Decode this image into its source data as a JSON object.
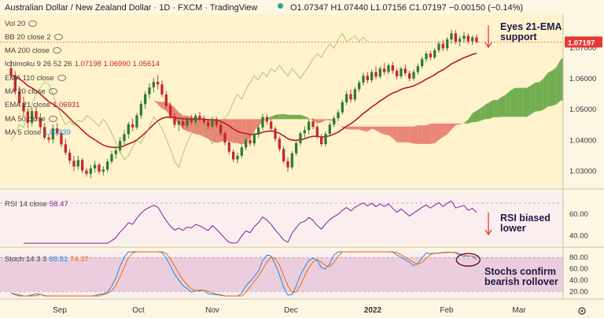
{
  "header": {
    "symbol": "Australian Dollar / New Zealand Dollar · 1D · FXCM · TradingView",
    "ohlc": "O1.07347  H1.07440  L1.07156  C1.07197  −0.00150 (−0.14%)"
  },
  "indicators": {
    "vol": {
      "label": "Vol 20"
    },
    "bb": {
      "label": "BB 20 close 2"
    },
    "ma200": {
      "label": "MA 200 close"
    },
    "ichimoku": {
      "label": "Ichimoku 9 26 52 26",
      "values": "1.07198  1.06990  1.05614"
    },
    "ema110": {
      "label": "EMA 110 close"
    },
    "ma20": {
      "label": "MA 20 close"
    },
    "ema21": {
      "label": "EMA 21 close",
      "value": "1.06931"
    },
    "ma50": {
      "label": "MA 50 close"
    },
    "ma5": {
      "label": "MA 5 close",
      "value": "1.07339"
    },
    "rsi": {
      "label": "RSI 14 close",
      "value": "58.47"
    },
    "stoch": {
      "label": "Stoch 14 3 3",
      "k": "68.51",
      "d": "74.37"
    }
  },
  "annotations": {
    "ema": "Eyes 21-EMA support",
    "rsi": "RSI biased lower",
    "stoch": "Stochs confirm bearish rollover"
  },
  "colors": {
    "bull": "#2e7d32",
    "bear": "#c62828",
    "ema21": "#b71c1c",
    "cloud_bull": "#6aaa4a",
    "cloud_bear": "#e57368",
    "rsi": "#7b1fa2",
    "stoch_k": "#1e88e5",
    "stoch_d": "#ef6c00",
    "price_badge": "#e53935"
  },
  "chart_data": {
    "type": "candlestick",
    "price_axis": {
      "ticks": [
        1.03,
        1.04,
        1.05,
        1.06,
        1.07
      ],
      "range": [
        1.0255,
        1.0805
      ]
    },
    "time_axis": {
      "ticks": [
        "Sep",
        "Oct",
        "Nov",
        "Dec",
        "2022",
        "Feb",
        "Mar"
      ]
    },
    "last_price": "1.07197",
    "rsi": {
      "ticks": [
        40,
        60
      ],
      "range": [
        33,
        78
      ],
      "bands": [
        30,
        70
      ],
      "last": 58.47
    },
    "stoch": {
      "ticks": [
        20,
        40,
        60,
        80
      ],
      "range": [
        12,
        90
      ],
      "bands": [
        20,
        80
      ],
      "k_last": 68.51,
      "d_last": 74.37
    },
    "candles": [
      [
        1.0634,
        1.066,
        1.0602,
        1.0612
      ],
      [
        1.0612,
        1.0625,
        1.0548,
        1.056
      ],
      [
        1.056,
        1.0576,
        1.0511,
        1.0521
      ],
      [
        1.0521,
        1.0542,
        1.0479,
        1.0494
      ],
      [
        1.0494,
        1.0505,
        1.044,
        1.0457
      ],
      [
        1.0457,
        1.0508,
        1.0446,
        1.0495
      ],
      [
        1.0495,
        1.0511,
        1.0462,
        1.0472
      ],
      [
        1.0472,
        1.0488,
        1.0432,
        1.0443
      ],
      [
        1.0443,
        1.0456,
        1.0402,
        1.0409
      ],
      [
        1.0409,
        1.0422,
        1.0392,
        1.0403
      ],
      [
        1.0403,
        1.0451,
        1.039,
        1.0439
      ],
      [
        1.0439,
        1.0456,
        1.0414,
        1.0423
      ],
      [
        1.0423,
        1.043,
        1.0378,
        1.0387
      ],
      [
        1.0387,
        1.0405,
        1.0352,
        1.036
      ],
      [
        1.036,
        1.0371,
        1.0324,
        1.0334
      ],
      [
        1.0334,
        1.035,
        1.03,
        1.0315
      ],
      [
        1.0315,
        1.035,
        1.0305,
        1.0336
      ],
      [
        1.0336,
        1.0342,
        1.0294,
        1.0302
      ],
      [
        1.0302,
        1.031,
        1.0282,
        1.0291
      ],
      [
        1.0291,
        1.032,
        1.0278,
        1.0309
      ],
      [
        1.0309,
        1.0333,
        1.0295,
        1.0321
      ],
      [
        1.0321,
        1.0327,
        1.029,
        1.0298
      ],
      [
        1.0298,
        1.0316,
        1.0286,
        1.0305
      ],
      [
        1.0305,
        1.034,
        1.0297,
        1.0331
      ],
      [
        1.0331,
        1.0366,
        1.0323,
        1.0355
      ],
      [
        1.0355,
        1.038,
        1.034,
        1.0368
      ],
      [
        1.0368,
        1.041,
        1.036,
        1.0398
      ],
      [
        1.0398,
        1.0433,
        1.0385,
        1.042
      ],
      [
        1.042,
        1.046,
        1.0406,
        1.0452
      ],
      [
        1.0452,
        1.0471,
        1.043,
        1.0442
      ],
      [
        1.0442,
        1.049,
        1.0435,
        1.0481
      ],
      [
        1.0481,
        1.0529,
        1.047,
        1.0518
      ],
      [
        1.0518,
        1.056,
        1.0503,
        1.055
      ],
      [
        1.055,
        1.0585,
        1.0537,
        1.0572
      ],
      [
        1.0572,
        1.0603,
        1.0556,
        1.059
      ],
      [
        1.059,
        1.0612,
        1.0566,
        1.0582
      ],
      [
        1.0582,
        1.0595,
        1.054,
        1.0549
      ],
      [
        1.0549,
        1.056,
        1.0505,
        1.0512
      ],
      [
        1.0512,
        1.0524,
        1.047,
        1.0478
      ],
      [
        1.0478,
        1.0489,
        1.0441,
        1.0451
      ],
      [
        1.0451,
        1.047,
        1.043,
        1.0462
      ],
      [
        1.0462,
        1.047,
        1.0438,
        1.0448
      ],
      [
        1.0448,
        1.0475,
        1.044,
        1.0466
      ],
      [
        1.0466,
        1.0483,
        1.0451,
        1.046
      ],
      [
        1.046,
        1.0488,
        1.0452,
        1.048
      ],
      [
        1.048,
        1.0493,
        1.0461,
        1.0472
      ],
      [
        1.0472,
        1.0481,
        1.0451,
        1.0459
      ],
      [
        1.0459,
        1.0466,
        1.0436,
        1.0446
      ],
      [
        1.0446,
        1.0477,
        1.044,
        1.0469
      ],
      [
        1.0469,
        1.0476,
        1.0442,
        1.045
      ],
      [
        1.045,
        1.0459,
        1.0414,
        1.0423
      ],
      [
        1.0423,
        1.043,
        1.0384,
        1.0393
      ],
      [
        1.0393,
        1.04,
        1.0355,
        1.0363
      ],
      [
        1.0363,
        1.0371,
        1.033,
        1.0338
      ],
      [
        1.0338,
        1.036,
        1.0326,
        1.035
      ],
      [
        1.035,
        1.0385,
        1.0342,
        1.0377
      ],
      [
        1.0377,
        1.041,
        1.0368,
        1.0401
      ],
      [
        1.0401,
        1.042,
        1.0382,
        1.039
      ],
      [
        1.039,
        1.0428,
        1.038,
        1.0419
      ],
      [
        1.0419,
        1.045,
        1.0408,
        1.0442
      ],
      [
        1.0442,
        1.0486,
        1.0432,
        1.0476
      ],
      [
        1.0476,
        1.0484,
        1.0451,
        1.0461
      ],
      [
        1.0461,
        1.047,
        1.043,
        1.0438
      ],
      [
        1.0438,
        1.0446,
        1.0396,
        1.0405
      ],
      [
        1.0405,
        1.0412,
        1.0364,
        1.0372
      ],
      [
        1.0372,
        1.038,
        1.0325,
        1.0332
      ],
      [
        1.0332,
        1.0345,
        1.0298,
        1.0312
      ],
      [
        1.0312,
        1.0365,
        1.0306,
        1.0358
      ],
      [
        1.0358,
        1.0399,
        1.035,
        1.0391
      ],
      [
        1.0391,
        1.043,
        1.0382,
        1.0423
      ],
      [
        1.0423,
        1.0446,
        1.0407,
        1.0433
      ],
      [
        1.0433,
        1.047,
        1.042,
        1.0461
      ],
      [
        1.0461,
        1.0472,
        1.0436,
        1.0444
      ],
      [
        1.0444,
        1.045,
        1.0405,
        1.0412
      ],
      [
        1.0412,
        1.042,
        1.038,
        1.0388
      ],
      [
        1.0388,
        1.043,
        1.038,
        1.0421
      ],
      [
        1.0421,
        1.046,
        1.0414,
        1.0451
      ],
      [
        1.0451,
        1.048,
        1.0443,
        1.0472
      ],
      [
        1.0472,
        1.05,
        1.0462,
        1.0491
      ],
      [
        1.0491,
        1.0532,
        1.0484,
        1.0524
      ],
      [
        1.0524,
        1.056,
        1.0515,
        1.055
      ],
      [
        1.055,
        1.0565,
        1.0522,
        1.0533
      ],
      [
        1.0533,
        1.0574,
        1.0525,
        1.0566
      ],
      [
        1.0566,
        1.0596,
        1.0557,
        1.0588
      ],
      [
        1.0588,
        1.062,
        1.0578,
        1.061
      ],
      [
        1.061,
        1.0622,
        1.0586,
        1.0596
      ],
      [
        1.0596,
        1.063,
        1.0588,
        1.0622
      ],
      [
        1.0622,
        1.064,
        1.0598,
        1.0607
      ],
      [
        1.0607,
        1.0641,
        1.06,
        1.0633
      ],
      [
        1.0633,
        1.0652,
        1.0612,
        1.0622
      ],
      [
        1.0622,
        1.065,
        1.0615,
        1.0644
      ],
      [
        1.0644,
        1.0655,
        1.0616,
        1.0626
      ],
      [
        1.0626,
        1.0634,
        1.0599,
        1.0608
      ],
      [
        1.0608,
        1.064,
        1.06,
        1.0633
      ],
      [
        1.0633,
        1.0646,
        1.0609,
        1.0618
      ],
      [
        1.0618,
        1.0626,
        1.0592,
        1.0601
      ],
      [
        1.0601,
        1.063,
        1.0594,
        1.0622
      ],
      [
        1.0622,
        1.065,
        1.0614,
        1.0641
      ],
      [
        1.0641,
        1.0672,
        1.0633,
        1.0664
      ],
      [
        1.0664,
        1.069,
        1.0655,
        1.0682
      ],
      [
        1.0682,
        1.0692,
        1.066,
        1.067
      ],
      [
        1.067,
        1.0701,
        1.0663,
        1.0693
      ],
      [
        1.0693,
        1.0722,
        1.0684,
        1.0714
      ],
      [
        1.0714,
        1.0726,
        1.069,
        1.0699
      ],
      [
        1.0699,
        1.0735,
        1.069,
        1.0728
      ],
      [
        1.0728,
        1.076,
        1.0715,
        1.0748
      ],
      [
        1.0748,
        1.0758,
        1.0712,
        1.0721
      ],
      [
        1.0721,
        1.074,
        1.0705,
        1.073
      ],
      [
        1.073,
        1.0752,
        1.0718,
        1.074
      ],
      [
        1.074,
        1.0748,
        1.0714,
        1.0722
      ],
      [
        1.0722,
        1.0741,
        1.071,
        1.0735
      ],
      [
        1.07347,
        1.0744,
        1.07156,
        1.07197
      ]
    ]
  }
}
